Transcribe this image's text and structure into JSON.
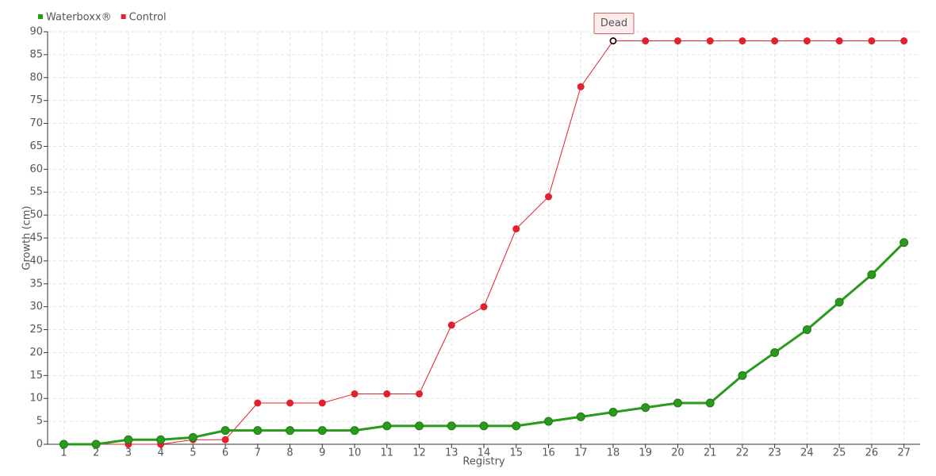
{
  "chart_data": {
    "type": "line",
    "categories": [
      "1",
      "2",
      "3",
      "4",
      "5",
      "6",
      "7",
      "8",
      "9",
      "10",
      "11",
      "12",
      "13",
      "14",
      "15",
      "16",
      "17",
      "18",
      "19",
      "20",
      "21",
      "22",
      "23",
      "24",
      "25",
      "26",
      "27"
    ],
    "series": [
      {
        "name": "Waterboxx®",
        "color": "#2a9a1c",
        "values": [
          0,
          0,
          1,
          1,
          1.5,
          3,
          3,
          3,
          3,
          3,
          4,
          4,
          4,
          4,
          4,
          5,
          6,
          7,
          8,
          9,
          9,
          15,
          20,
          25,
          31,
          37,
          44
        ]
      },
      {
        "name": "Control",
        "color": "#e3202d",
        "values": [
          0,
          0,
          0,
          0,
          1,
          1,
          9,
          9,
          9,
          11,
          11,
          11,
          26,
          30,
          47,
          54,
          78,
          88,
          88,
          88,
          88,
          88,
          88,
          88,
          88,
          88,
          88
        ]
      }
    ],
    "xlabel": "Registry",
    "ylabel": "Growth (cm)",
    "annotation": "Dead",
    "ylim": [
      0,
      90
    ],
    "yticks": [
      0,
      5,
      10,
      15,
      20,
      25,
      30,
      35,
      40,
      45,
      50,
      55,
      60,
      65,
      70,
      75,
      80,
      85,
      90
    ],
    "grid": true,
    "legend": "top-left"
  }
}
